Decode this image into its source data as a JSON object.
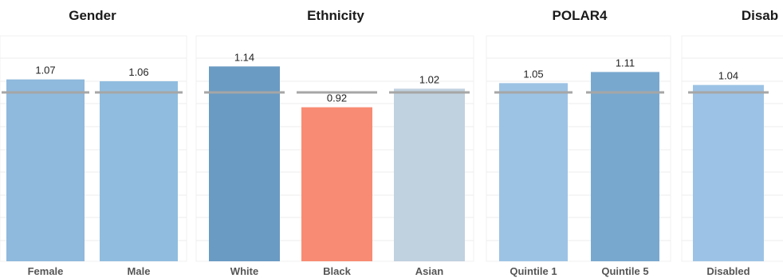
{
  "chart_data": [
    {
      "type": "bar",
      "title": "Gender",
      "categories": [
        "Female",
        "Male"
      ],
      "values": [
        1.07,
        1.06
      ],
      "colors": [
        "#8fb9dd",
        "#90bddf"
      ],
      "reference_line": 1.0,
      "ylim": [
        0,
        1.25
      ],
      "grid": true
    },
    {
      "type": "bar",
      "title": "Ethnicity",
      "categories": [
        "White",
        "Black",
        "Asian"
      ],
      "values": [
        1.14,
        0.92,
        1.02
      ],
      "colors": [
        "#6a9bc3",
        "#f88b73",
        "#c0d1df"
      ],
      "reference_line": 1.0,
      "ylim": [
        0,
        1.25
      ],
      "grid": true
    },
    {
      "type": "bar",
      "title": "POLAR4",
      "categories": [
        "Quintile 1",
        "Quintile 5"
      ],
      "values": [
        1.05,
        1.11
      ],
      "colors": [
        "#9dc3e4",
        "#79a8cf"
      ],
      "reference_line": 1.0,
      "ylim": [
        0,
        1.25
      ],
      "grid": true
    },
    {
      "type": "bar",
      "title": "Disab",
      "categories": [
        "Disabled"
      ],
      "values": [
        1.04
      ],
      "colors": [
        "#9cc3e5"
      ],
      "reference_line": 1.0,
      "ylim": [
        0,
        1.25
      ],
      "grid": true
    }
  ],
  "style": {
    "reference_line_color": "#a6a6a6",
    "panel_background": "#ffffff",
    "panel_border": "#f0f0f0"
  }
}
